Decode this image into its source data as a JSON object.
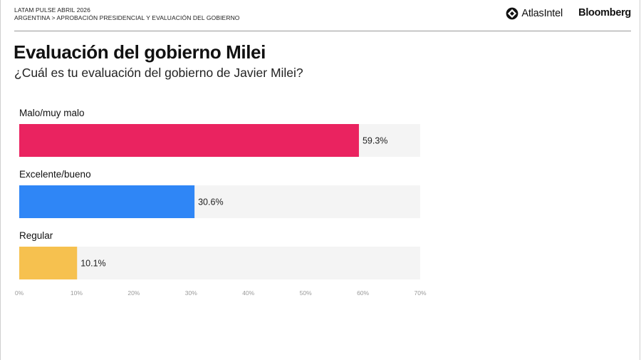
{
  "header": {
    "breadcrumb_line1": "LATAM PULSE ABRIL 2026",
    "breadcrumb_line2": "ARGENTINA > APROBACIÓN PRESIDENCIAL Y EVALUACIÓN DEL GOBIERNO",
    "brand_atlas": "AtlasIntel",
    "brand_bloomberg": "Bloomberg"
  },
  "chart_data": {
    "type": "bar",
    "orientation": "horizontal",
    "title": "Evaluación del gobierno Milei",
    "subtitle": "¿Cuál es tu evaluación del gobierno de Javier Milei?",
    "categories": [
      "Malo/muy malo",
      "Excelente/bueno",
      "Regular"
    ],
    "values": [
      59.3,
      30.6,
      10.1
    ],
    "value_labels": [
      "59.3%",
      "30.6%",
      "10.1%"
    ],
    "colors": [
      "#ea2360",
      "#2f86f6",
      "#f6c14f"
    ],
    "track_color": "#f4f4f4",
    "xlim": [
      0,
      70
    ],
    "ticks": [
      0,
      10,
      20,
      30,
      40,
      50,
      60,
      70
    ],
    "tick_labels": [
      "0%",
      "10%",
      "20%",
      "30%",
      "40%",
      "50%",
      "60%",
      "70%"
    ],
    "grid": false,
    "legend": "none"
  }
}
